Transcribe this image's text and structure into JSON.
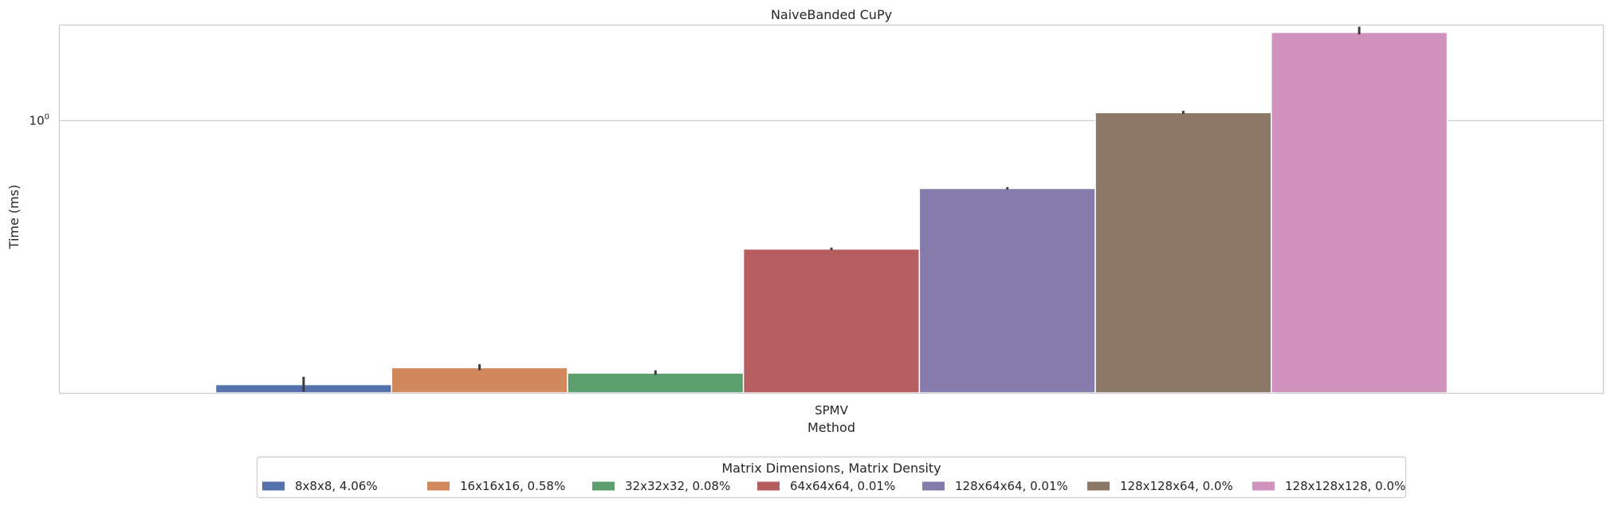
{
  "chart_data": {
    "type": "bar",
    "title": "NaiveBanded CuPy",
    "xlabel": "Method",
    "ylabel": "Time (ms)",
    "yscale": "log",
    "ylim": [
      0.12,
      2.1
    ],
    "grid": true,
    "categories": [
      "SPMV"
    ],
    "y_ticks": [
      {
        "value": 1,
        "base": "10",
        "exp": "0"
      }
    ],
    "series": [
      {
        "name": "8x8x8, 4.06%",
        "color": "#5471ab",
        "values": [
          0.128
        ],
        "error": [
          0.121,
          0.136
        ]
      },
      {
        "name": "16x16x16, 0.58%",
        "color": "#d1885c",
        "values": [
          0.146
        ],
        "error": [
          0.143,
          0.15
        ]
      },
      {
        "name": "32x32x32, 0.08%",
        "color": "#5c9e6e",
        "values": [
          0.14
        ],
        "error": [
          0.138,
          0.143
        ]
      },
      {
        "name": "64x64x64, 0.01%",
        "color": "#b65d60",
        "values": [
          0.368
        ],
        "error": [
          0.365,
          0.372
        ]
      },
      {
        "name": "128x64x64, 0.01%",
        "color": "#867cac",
        "values": [
          0.59
        ],
        "error": [
          0.586,
          0.596
        ]
      },
      {
        "name": "128x128x64, 0.0%",
        "color": "#8c7866",
        "values": [
          1.065
        ],
        "error": [
          1.055,
          1.08
        ]
      },
      {
        "name": "128x128x128, 0.0%",
        "color": "#cf93bd",
        "values": [
          1.99
        ],
        "error": [
          1.96,
          2.08
        ]
      }
    ],
    "legend": {
      "title": "Matrix Dimensions, Matrix Density",
      "placement": "bottom-center"
    }
  }
}
